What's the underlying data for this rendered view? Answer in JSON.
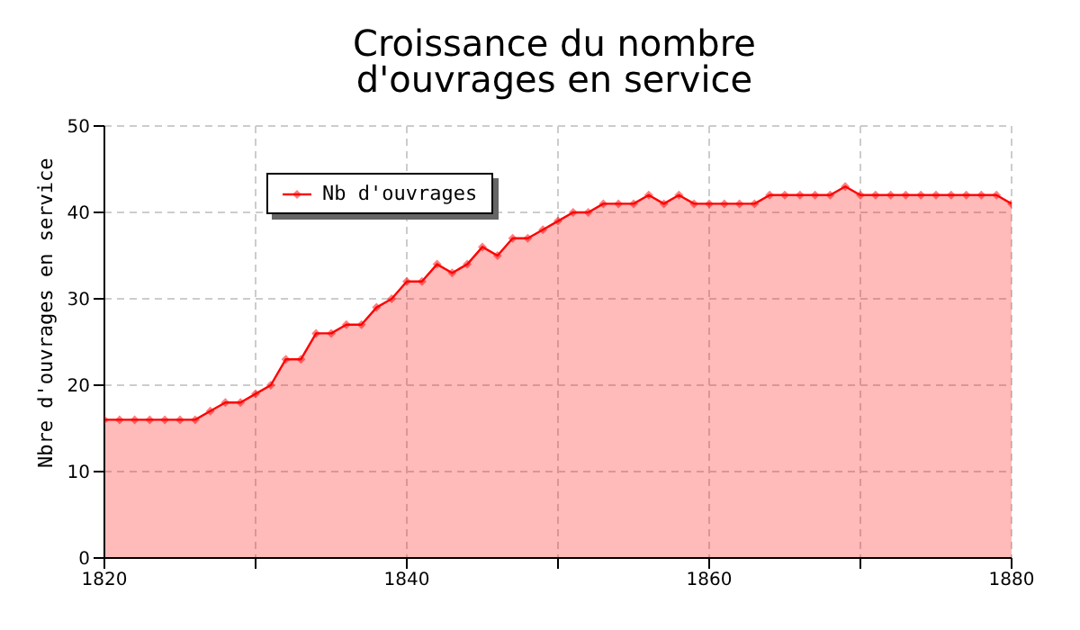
{
  "chart_data": {
    "type": "area",
    "title": "Croissance du nombre d'ouvrages en service",
    "ylabel": "Nbre d'ouvrages en service",
    "x": [
      1820,
      1821,
      1822,
      1823,
      1824,
      1825,
      1826,
      1827,
      1828,
      1829,
      1830,
      1831,
      1832,
      1833,
      1834,
      1835,
      1836,
      1837,
      1838,
      1839,
      1840,
      1841,
      1842,
      1843,
      1844,
      1845,
      1846,
      1847,
      1848,
      1849,
      1850,
      1851,
      1852,
      1853,
      1854,
      1855,
      1856,
      1857,
      1858,
      1859,
      1860,
      1861,
      1862,
      1863,
      1864,
      1865,
      1866,
      1867,
      1868,
      1869,
      1870,
      1871,
      1872,
      1873,
      1874,
      1875,
      1876,
      1877,
      1878,
      1879,
      1880
    ],
    "series": [
      {
        "name": "Nb d'ouvrages",
        "color": "#ff0000",
        "values": [
          16,
          16,
          16,
          16,
          16,
          16,
          16,
          17,
          18,
          18,
          19,
          20,
          23,
          23,
          26,
          26,
          27,
          27,
          29,
          30,
          32,
          32,
          34,
          33,
          34,
          36,
          35,
          37,
          37,
          38,
          39,
          40,
          40,
          41,
          41,
          41,
          42,
          41,
          42,
          41,
          41,
          41,
          41,
          41,
          42,
          42,
          42,
          42,
          42,
          43,
          42,
          42,
          42,
          42,
          42,
          42,
          42,
          42,
          42,
          42,
          41
        ]
      }
    ],
    "xlim": [
      1820,
      1880
    ],
    "xticks": [
      1820,
      {
        "value": 1830,
        "label": null
      },
      1840,
      {
        "value": 1850,
        "label": null
      },
      1860,
      {
        "value": 1870,
        "label": null
      },
      1880
    ],
    "ylim": [
      0,
      50
    ],
    "yticks": [
      0,
      10,
      20,
      30,
      40,
      50
    ],
    "grid": true,
    "legend": "top left",
    "marker": "diamond",
    "line_style": "solid"
  }
}
